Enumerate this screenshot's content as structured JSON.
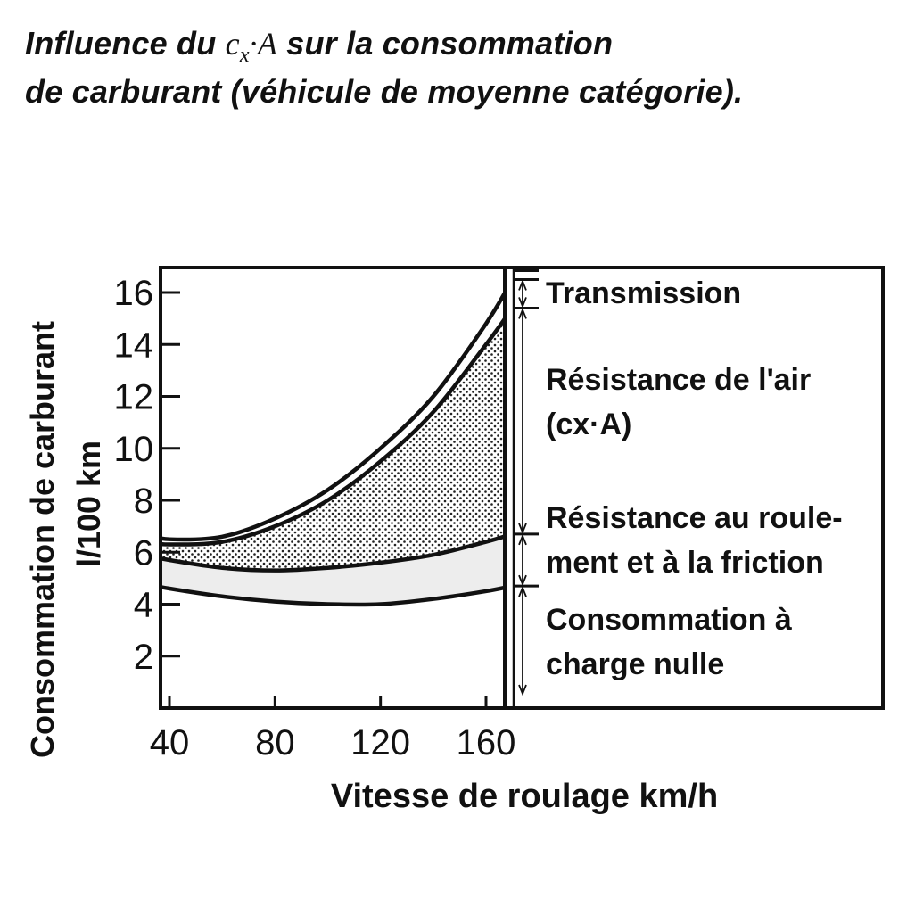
{
  "title": {
    "line1_before": "Influence du ",
    "symbol_c": "c",
    "symbol_sub": "x",
    "symbol_rest": "·A",
    "line1_after": " sur la consommation",
    "line2": "de carburant (véhicule de moyenne catégorie)."
  },
  "chart_data": {
    "type": "area",
    "xlabel": "Vitesse de roulage km/h",
    "ylabel_line1": "Consommation de carburant",
    "ylabel_line2": "l/100 km",
    "xlim": [
      30,
      170
    ],
    "ylim": [
      0,
      17
    ],
    "xticks": [
      40,
      80,
      120,
      160
    ],
    "yticks": [
      2,
      4,
      6,
      8,
      10,
      12,
      14,
      16
    ],
    "grid": false,
    "fill_colors": {
      "air_resistance": "#9a9a9a",
      "rolling_resistance": "#ededed"
    },
    "series": [
      {
        "name": "Consommation à charge nulle",
        "x": [
          30,
          40,
          60,
          80,
          100,
          120,
          140,
          160,
          170
        ],
        "y": [
          4.8,
          4.6,
          4.3,
          4.1,
          4.0,
          4.0,
          4.2,
          4.5,
          4.7
        ]
      },
      {
        "name": "Résistance au roulement et à la friction",
        "x": [
          30,
          40,
          60,
          80,
          100,
          120,
          140,
          160,
          170
        ],
        "y": [
          5.9,
          5.7,
          5.4,
          5.3,
          5.4,
          5.6,
          5.9,
          6.4,
          6.7
        ]
      },
      {
        "name": "Résistance de l'air (cx·A)",
        "x": [
          30,
          40,
          60,
          80,
          100,
          120,
          140,
          160,
          170
        ],
        "y": [
          6.4,
          6.3,
          6.4,
          7.0,
          8.0,
          9.5,
          11.4,
          14.0,
          15.4
        ]
      },
      {
        "name": "Transmission",
        "x": [
          30,
          40,
          60,
          80,
          100,
          120,
          140,
          160,
          170
        ],
        "y": [
          6.7,
          6.5,
          6.6,
          7.3,
          8.4,
          10.0,
          12.0,
          14.8,
          16.5
        ]
      }
    ],
    "legend_labels": [
      {
        "text_lines": [
          "Transmission"
        ],
        "range": [
          15.4,
          16.5
        ]
      },
      {
        "text_lines": [
          "Résistance de l'air",
          "(cx·A)"
        ],
        "range": [
          6.7,
          15.4
        ]
      },
      {
        "text_lines": [
          "Résistance au roule-",
          "ment et à la friction"
        ],
        "range": [
          4.7,
          6.7
        ]
      },
      {
        "text_lines": [
          "Consommation à",
          "charge nulle"
        ],
        "range": [
          0,
          4.7
        ]
      }
    ]
  }
}
